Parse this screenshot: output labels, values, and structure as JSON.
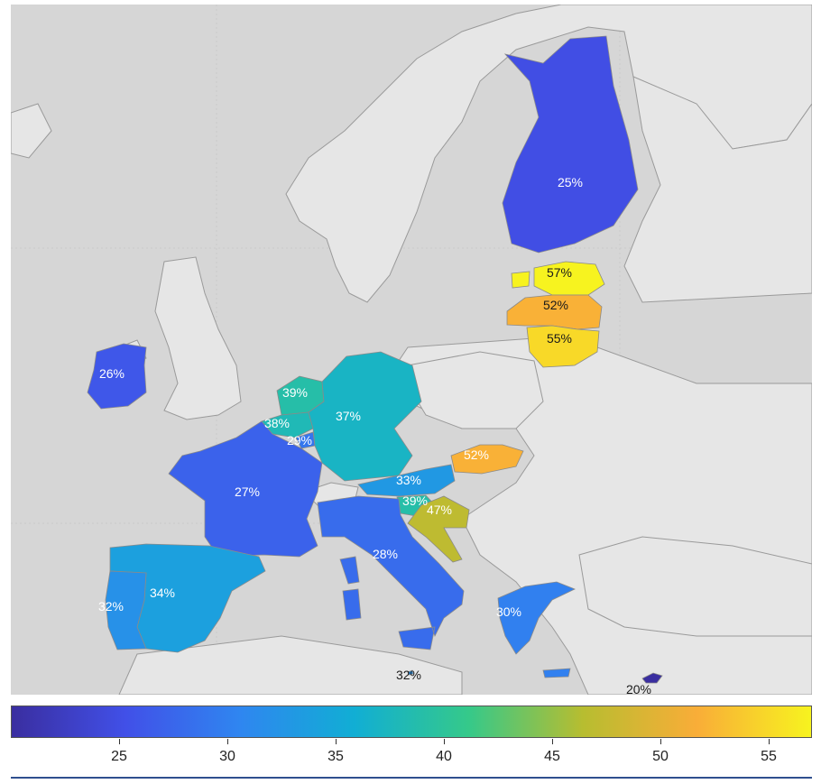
{
  "regions": [
    {
      "id": "finland",
      "value": 25,
      "label": "25%",
      "label_tone": "light"
    },
    {
      "id": "estonia",
      "value": 57,
      "label": "57%",
      "label_tone": "dark"
    },
    {
      "id": "latvia",
      "value": 52,
      "label": "52%",
      "label_tone": "dark"
    },
    {
      "id": "lithuania",
      "value": 55,
      "label": "55%",
      "label_tone": "dark"
    },
    {
      "id": "ireland",
      "value": 26,
      "label": "26%",
      "label_tone": "light"
    },
    {
      "id": "netherlands",
      "value": 39,
      "label": "39%",
      "label_tone": "light"
    },
    {
      "id": "belgium",
      "value": 38,
      "label": "38%",
      "label_tone": "light"
    },
    {
      "id": "luxembourg",
      "value": 29,
      "label": "29%",
      "label_tone": "light"
    },
    {
      "id": "germany",
      "value": 37,
      "label": "37%",
      "label_tone": "light"
    },
    {
      "id": "slovakia",
      "value": 52,
      "label": "52%",
      "label_tone": "light"
    },
    {
      "id": "austria",
      "value": 33,
      "label": "33%",
      "label_tone": "light"
    },
    {
      "id": "slovenia",
      "value": 39,
      "label": "39%",
      "label_tone": "light"
    },
    {
      "id": "croatia",
      "value": 47,
      "label": "47%",
      "label_tone": "light"
    },
    {
      "id": "france",
      "value": 27,
      "label": "27%",
      "label_tone": "light"
    },
    {
      "id": "italy",
      "value": 28,
      "label": "28%",
      "label_tone": "light"
    },
    {
      "id": "spain",
      "value": 34,
      "label": "34%",
      "label_tone": "light"
    },
    {
      "id": "portugal",
      "value": 32,
      "label": "32%",
      "label_tone": "light"
    },
    {
      "id": "greece",
      "value": 30,
      "label": "30%",
      "label_tone": "light"
    },
    {
      "id": "malta",
      "value": 32,
      "label": "32%",
      "label_tone": "dark"
    },
    {
      "id": "cyprus",
      "value": 20,
      "label": "20%",
      "label_tone": "dark"
    }
  ],
  "colorbar": {
    "min": 20,
    "max": 57,
    "ticks": [
      "25",
      "30",
      "35",
      "40",
      "45",
      "50",
      "55"
    ],
    "colors": [
      "#3a2ea0",
      "#4150e8",
      "#2f86f0",
      "#11aed4",
      "#35c98a",
      "#b7bd30",
      "#f9ad38",
      "#f7f31f"
    ]
  },
  "colors": {
    "sea": "#d6d6d6",
    "land_no_data": "#e6e6e6",
    "border": "#9a9a9a"
  }
}
